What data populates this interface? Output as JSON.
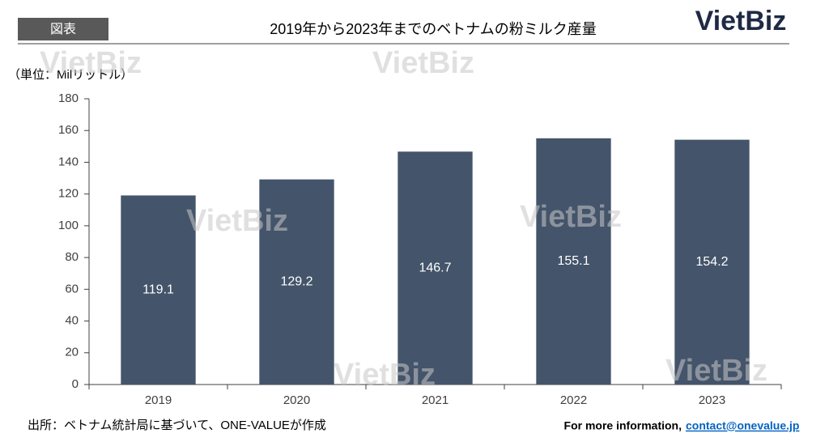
{
  "tag": "図表",
  "logo": "VietBiz",
  "watermark": "VietBiz",
  "unit": "（単位：Milリットル）",
  "source": "出所：ベトナム統計局に基づいて、ONE-VALUEが作成",
  "footer": {
    "label": "For more information,",
    "email": "contact@onevalue.jp"
  },
  "chart_data": {
    "type": "bar",
    "title": "2019年から2023年までのベトナムの粉ミルク産量",
    "categories": [
      "2019",
      "2020",
      "2021",
      "2022",
      "2023"
    ],
    "values": [
      119.1,
      129.2,
      146.7,
      155.1,
      154.2
    ],
    "color": "#44546a",
    "label_color": "#ffffff",
    "ylim": [
      0,
      180
    ],
    "yticks": [
      0,
      20,
      40,
      60,
      80,
      100,
      120,
      140,
      160,
      180
    ],
    "grid": false
  }
}
